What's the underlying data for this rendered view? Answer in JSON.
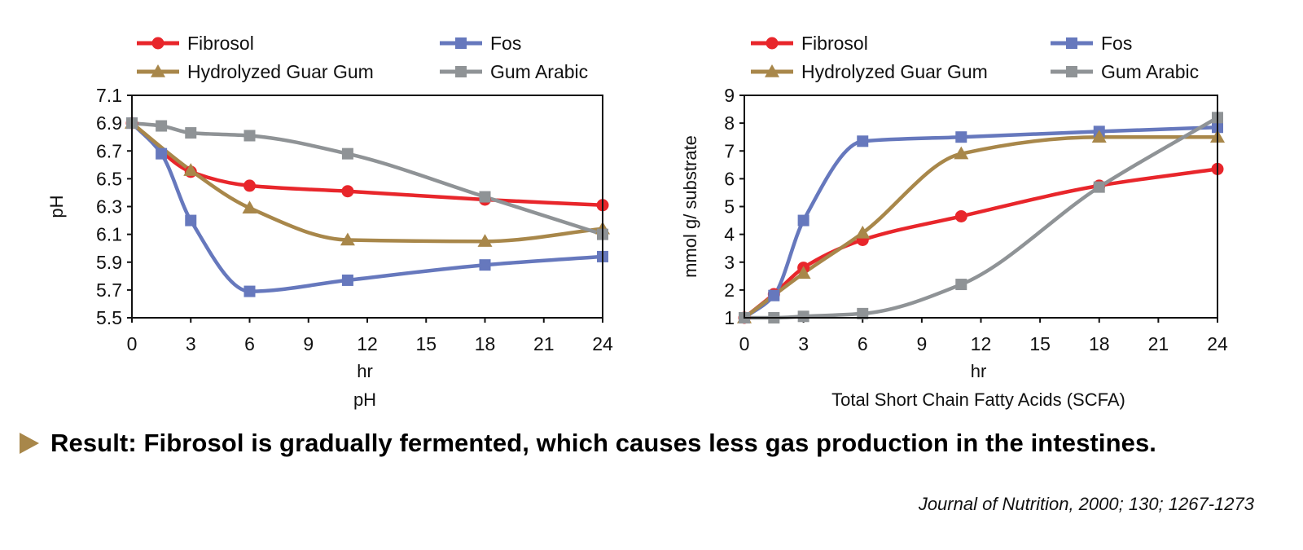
{
  "chart_data": [
    {
      "type": "line",
      "title": "pH",
      "xlabel": "hr",
      "ylabel": "pH",
      "xlim": [
        0,
        24
      ],
      "ylim": [
        5.5,
        7.1
      ],
      "xticks": [
        0,
        3,
        6,
        9,
        12,
        15,
        18,
        21,
        24
      ],
      "yticks": [
        5.5,
        5.7,
        5.9,
        6.1,
        6.3,
        6.5,
        6.7,
        6.9,
        7.1
      ],
      "legend_position": "top",
      "series": [
        {
          "name": "Fibrosol",
          "color": "#e8262b",
          "marker": "circle",
          "points": [
            [
              0,
              6.9
            ],
            [
              3,
              6.55
            ],
            [
              6,
              6.45
            ],
            [
              11,
              6.41
            ],
            [
              18,
              6.35
            ],
            [
              24,
              6.31
            ]
          ]
        },
        {
          "name": "Fos",
          "color": "#6678bd",
          "marker": "square",
          "points": [
            [
              0,
              6.9
            ],
            [
              1.5,
              6.68
            ],
            [
              3,
              6.2
            ],
            [
              6,
              5.69
            ],
            [
              11,
              5.77
            ],
            [
              18,
              5.88
            ],
            [
              24,
              5.94
            ]
          ]
        },
        {
          "name": "Hydrolyzed Guar Gum",
          "color": "#a8874a",
          "marker": "triangle",
          "points": [
            [
              0,
              6.9
            ],
            [
              3,
              6.56
            ],
            [
              6,
              6.29
            ],
            [
              11,
              6.06
            ],
            [
              18,
              6.05
            ],
            [
              24,
              6.14
            ]
          ]
        },
        {
          "name": "Gum Arabic",
          "color": "#8f9396",
          "marker": "square",
          "points": [
            [
              0,
              6.9
            ],
            [
              1.5,
              6.88
            ],
            [
              3,
              6.83
            ],
            [
              6,
              6.81
            ],
            [
              11,
              6.68
            ],
            [
              18,
              6.37
            ],
            [
              24,
              6.1
            ]
          ]
        }
      ]
    },
    {
      "type": "line",
      "title": "Total Short Chain Fatty Acids (SCFA)",
      "xlabel": "hr",
      "ylabel": "mmol g/ substrate",
      "xlim": [
        0,
        24
      ],
      "ylim": [
        1,
        9
      ],
      "xticks": [
        0,
        3,
        6,
        9,
        12,
        15,
        18,
        21,
        24
      ],
      "yticks": [
        1,
        2,
        3,
        4,
        5,
        6,
        7,
        8,
        9
      ],
      "legend_position": "top",
      "series": [
        {
          "name": "Fibrosol",
          "color": "#e8262b",
          "marker": "circle",
          "points": [
            [
              0,
              1.0
            ],
            [
              1.5,
              1.85
            ],
            [
              3,
              2.8
            ],
            [
              6,
              3.8
            ],
            [
              11,
              4.65
            ],
            [
              18,
              5.75
            ],
            [
              24,
              6.35
            ]
          ]
        },
        {
          "name": "Fos",
          "color": "#6678bd",
          "marker": "square",
          "points": [
            [
              0,
              1.0
            ],
            [
              1.5,
              1.8
            ],
            [
              3,
              4.5
            ],
            [
              6,
              7.35
            ],
            [
              11,
              7.5
            ],
            [
              18,
              7.7
            ],
            [
              24,
              7.85
            ]
          ]
        },
        {
          "name": "Hydrolyzed Guar Gum",
          "color": "#a8874a",
          "marker": "triangle",
          "points": [
            [
              0,
              1.0
            ],
            [
              3,
              2.6
            ],
            [
              6,
              4.05
            ],
            [
              11,
              6.9
            ],
            [
              18,
              7.5
            ],
            [
              24,
              7.5
            ]
          ]
        },
        {
          "name": "Gum Arabic",
          "color": "#8f9396",
          "marker": "square",
          "points": [
            [
              0,
              1.0
            ],
            [
              1.5,
              1.0
            ],
            [
              3,
              1.05
            ],
            [
              6,
              1.15
            ],
            [
              11,
              2.2
            ],
            [
              18,
              5.7
            ],
            [
              24,
              8.2
            ]
          ]
        }
      ]
    }
  ],
  "result_text": "Result: Fibrosol is gradually fermented, which causes less gas production in the intestines.",
  "citation": "Journal of Nutrition, 2000; 130; 1267-1273"
}
